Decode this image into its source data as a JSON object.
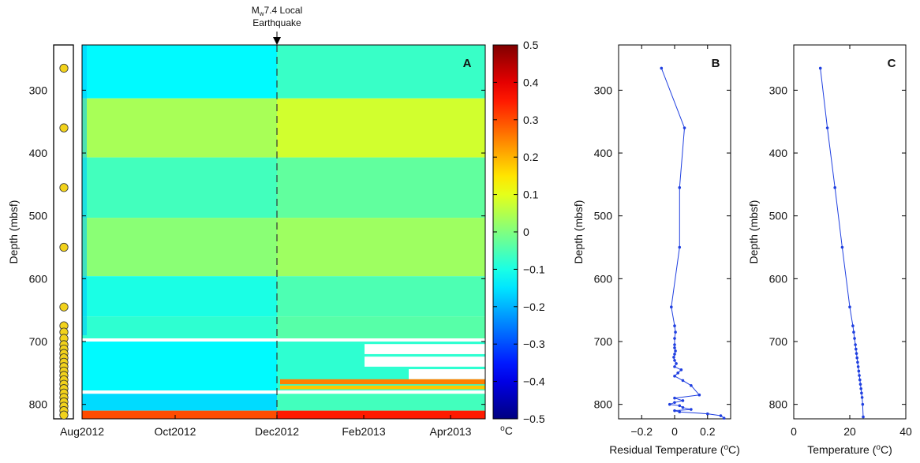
{
  "annotation": {
    "magnitude": "M",
    "magnitude_sub": "w",
    "line1_rest": "7.4 Local",
    "line2": "Earthquake"
  },
  "colors": {
    "text": "#111111",
    "marker_fill": "#f2d21b",
    "line_blue": "#1f3fe0",
    "gap_white": "#ffffff"
  },
  "chart_data": [
    {
      "type": "heatmap",
      "panel_label": "A",
      "ylabel": "Depth (mbsf)",
      "x_tick_labels": [
        "Aug2012",
        "Oct2012",
        "Dec2012",
        "Feb2013",
        "Apr2013"
      ],
      "y_tick_labels": [
        "300",
        "400",
        "500",
        "600",
        "700",
        "800"
      ],
      "y_ticks": [
        300,
        400,
        500,
        600,
        700,
        800
      ],
      "ylim": [
        228,
        823
      ],
      "y_reversed": true,
      "colormap": "jet",
      "colorbar": {
        "range": [
          -0.5,
          0.5
        ],
        "tick_labels": [
          "0.5",
          "0.4",
          "0.3",
          "0.2",
          "0.1",
          "0",
          "−0.1",
          "−0.2",
          "−0.3",
          "−0.4",
          "−0.5"
        ],
        "unit_label": "oC"
      },
      "event_marker": "Dec2012",
      "sensor_depths": [
        265,
        360,
        455,
        550,
        645,
        675,
        685,
        695,
        705,
        712,
        719,
        726,
        733,
        740,
        747,
        754,
        761,
        768,
        775,
        782,
        789,
        796,
        803,
        810,
        817
      ],
      "bands": [
        {
          "top": 228,
          "bottom": 313,
          "before": -0.13,
          "after": -0.07
        },
        {
          "top": 313,
          "bottom": 407,
          "before": 0.04,
          "after": 0.08
        },
        {
          "top": 407,
          "bottom": 503,
          "before": -0.06,
          "after": -0.03
        },
        {
          "top": 503,
          "bottom": 596,
          "before": 0.01,
          "after": 0.03
        },
        {
          "top": 596,
          "bottom": 660,
          "before": -0.1,
          "after": -0.05
        },
        {
          "top": 660,
          "bottom": 695,
          "before": -0.08,
          "after": -0.04
        },
        {
          "top": 700,
          "bottom": 778,
          "before": -0.13,
          "after": -0.08
        },
        {
          "top": 783,
          "bottom": 810,
          "before": -0.16,
          "after": -0.06
        },
        {
          "top": 810,
          "bottom": 823,
          "before": 0.3,
          "after": 0.35
        }
      ]
    },
    {
      "type": "line",
      "panel_label": "B",
      "xlabel": "Residual Temperature (oC)",
      "ylabel": "Depth (mbsf)",
      "x_tick_labels": [
        "−0.2",
        "0",
        "0.2"
      ],
      "x_ticks": [
        -0.2,
        0,
        0.2
      ],
      "xlim": [
        -0.34,
        0.34
      ],
      "y_tick_labels": [
        "300",
        "400",
        "500",
        "600",
        "700",
        "800"
      ],
      "y_ticks": [
        300,
        400,
        500,
        600,
        700,
        800
      ],
      "ylim": [
        228,
        823
      ],
      "y_reversed": true,
      "x": [
        -0.08,
        0.06,
        0.03,
        0.03,
        -0.02,
        0.0,
        0.005,
        0.0,
        0.0,
        0.0,
        0.005,
        0.0,
        -0.005,
        0.0,
        0.01,
        0.0,
        0.04,
        0.02,
        0.0,
        0.05,
        0.1,
        0.15,
        0.0,
        0.05,
        0.0,
        -0.03,
        0.03,
        0.05,
        0.1,
        0.0,
        0.03,
        0.2,
        0.28,
        0.3
      ],
      "y": [
        265,
        360,
        455,
        550,
        645,
        675,
        685,
        695,
        705,
        710,
        715,
        720,
        725,
        730,
        735,
        740,
        745,
        750,
        755,
        762,
        770,
        785,
        790,
        794,
        797,
        800,
        802,
        805,
        808,
        810,
        812,
        815,
        818,
        822
      ]
    },
    {
      "type": "line",
      "panel_label": "C",
      "xlabel": "Temperature (oC)",
      "ylabel": "Depth (mbsf)",
      "x_tick_labels": [
        "0",
        "20",
        "40"
      ],
      "x_ticks": [
        0,
        20,
        40
      ],
      "xlim": [
        0,
        40
      ],
      "y_tick_labels": [
        "300",
        "400",
        "500",
        "600",
        "700",
        "800"
      ],
      "y_ticks": [
        300,
        400,
        500,
        600,
        700,
        800
      ],
      "ylim": [
        228,
        823
      ],
      "y_reversed": true,
      "x": [
        9.5,
        12.0,
        14.7,
        17.3,
        20.0,
        21.1,
        21.4,
        21.7,
        22.0,
        22.2,
        22.4,
        22.6,
        22.8,
        23.0,
        23.2,
        23.4,
        23.6,
        23.8,
        24.0,
        24.2,
        24.4,
        24.6,
        24.8
      ],
      "y": [
        265,
        360,
        455,
        550,
        645,
        675,
        685,
        695,
        705,
        712,
        719,
        726,
        733,
        740,
        747,
        754,
        761,
        768,
        775,
        782,
        789,
        800,
        820
      ]
    }
  ]
}
